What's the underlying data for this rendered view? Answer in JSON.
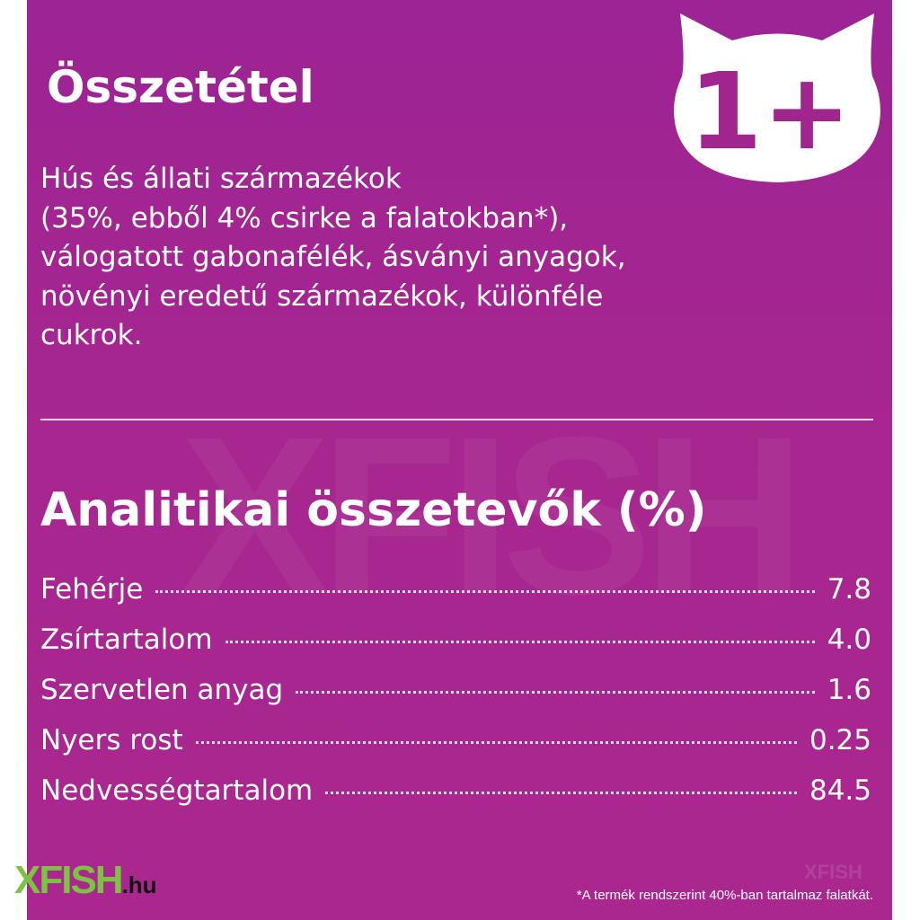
{
  "badge": {
    "text": "1+",
    "icon": "cat-head-icon"
  },
  "composition": {
    "title": "Összetétel",
    "lines": [
      "Hús és állati származékok",
      "(35%, ebből 4% csirke a falatokban*),",
      "válogatott gabonafélék, ásványi anyagok,",
      "növényi eredetű származékok, különféle",
      "cukrok."
    ]
  },
  "analysis": {
    "title": "Analitikai összetevők (%)",
    "rows": [
      {
        "label": "Fehérje",
        "value": "7.8"
      },
      {
        "label": "Zsírtartalom",
        "value": "4.0"
      },
      {
        "label": "Szervetlen anyag",
        "value": "1.6"
      },
      {
        "label": "Nyers rost",
        "value": "0.25"
      },
      {
        "label": "Nedvességtartalom",
        "value": "84.5"
      }
    ]
  },
  "footnote": "*A termék rendszerint 40%-ban tartalmaz falatkát.",
  "watermark": {
    "main": "XFISH",
    "suffix": ".hu"
  },
  "colors": {
    "background": "#a8268f",
    "text": "#ffffff",
    "logo_green": "#7dc242"
  }
}
